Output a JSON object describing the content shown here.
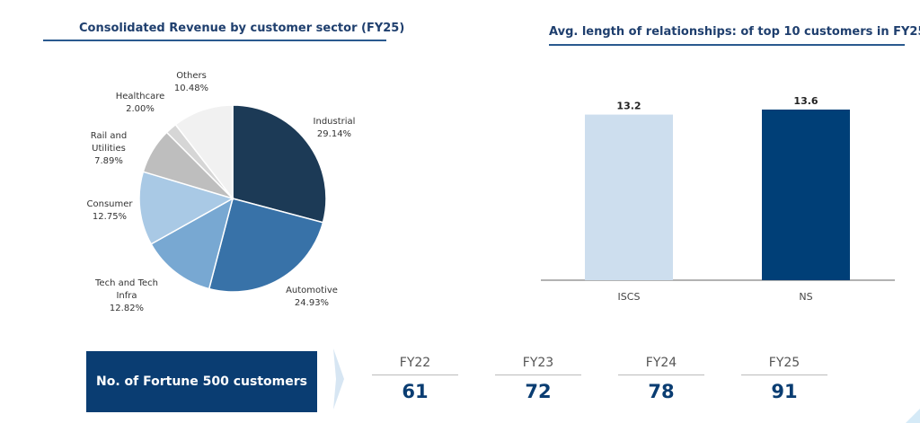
{
  "pie_section": {
    "title": "Consolidated Revenue by customer sector (FY25)"
  },
  "bar_section": {
    "title": "Avg. length of relationships: of top 10 customers in FY25"
  },
  "fortune500": {
    "label": "No. of Fortune 500 customers",
    "years": [
      {
        "year": "FY22",
        "value": "61"
      },
      {
        "year": "FY23",
        "value": "72"
      },
      {
        "year": "FY24",
        "value": "78"
      },
      {
        "year": "FY25",
        "value": "91"
      }
    ]
  },
  "chart_data": [
    {
      "type": "pie",
      "title": "Consolidated Revenue by customer sector (FY25)",
      "slices": [
        {
          "label": "Industrial",
          "value": 29.14,
          "display": "29.14%",
          "color": "#1c3a56"
        },
        {
          "label": "Automotive",
          "value": 24.93,
          "display": "24.93%",
          "color": "#3872a8"
        },
        {
          "label": "Tech and Tech Infra",
          "value": 12.82,
          "display": "12.82%",
          "color": "#78a8d2"
        },
        {
          "label": "Consumer",
          "value": 12.75,
          "display": "12.75%",
          "color": "#a9c9e5"
        },
        {
          "label": "Rail and Utilities",
          "value": 7.89,
          "display": "7.89%",
          "color": "#bebebe"
        },
        {
          "label": "Healthcare",
          "value": 2.0,
          "display": "2.00%",
          "color": "#d6d6d6"
        },
        {
          "label": "Others",
          "value": 10.48,
          "display": "10.48%",
          "color": "#f1f1f1"
        }
      ]
    },
    {
      "type": "bar",
      "title": "Avg. length of relationships: of top 10 customers in FY25",
      "categories": [
        "ISCS",
        "NS"
      ],
      "values": [
        13.2,
        13.6
      ],
      "value_labels": [
        "13.2",
        "13.6"
      ],
      "colors": [
        "#cddeee",
        "#003f77"
      ],
      "ylim": [
        0,
        13.6
      ],
      "grid": false
    }
  ]
}
